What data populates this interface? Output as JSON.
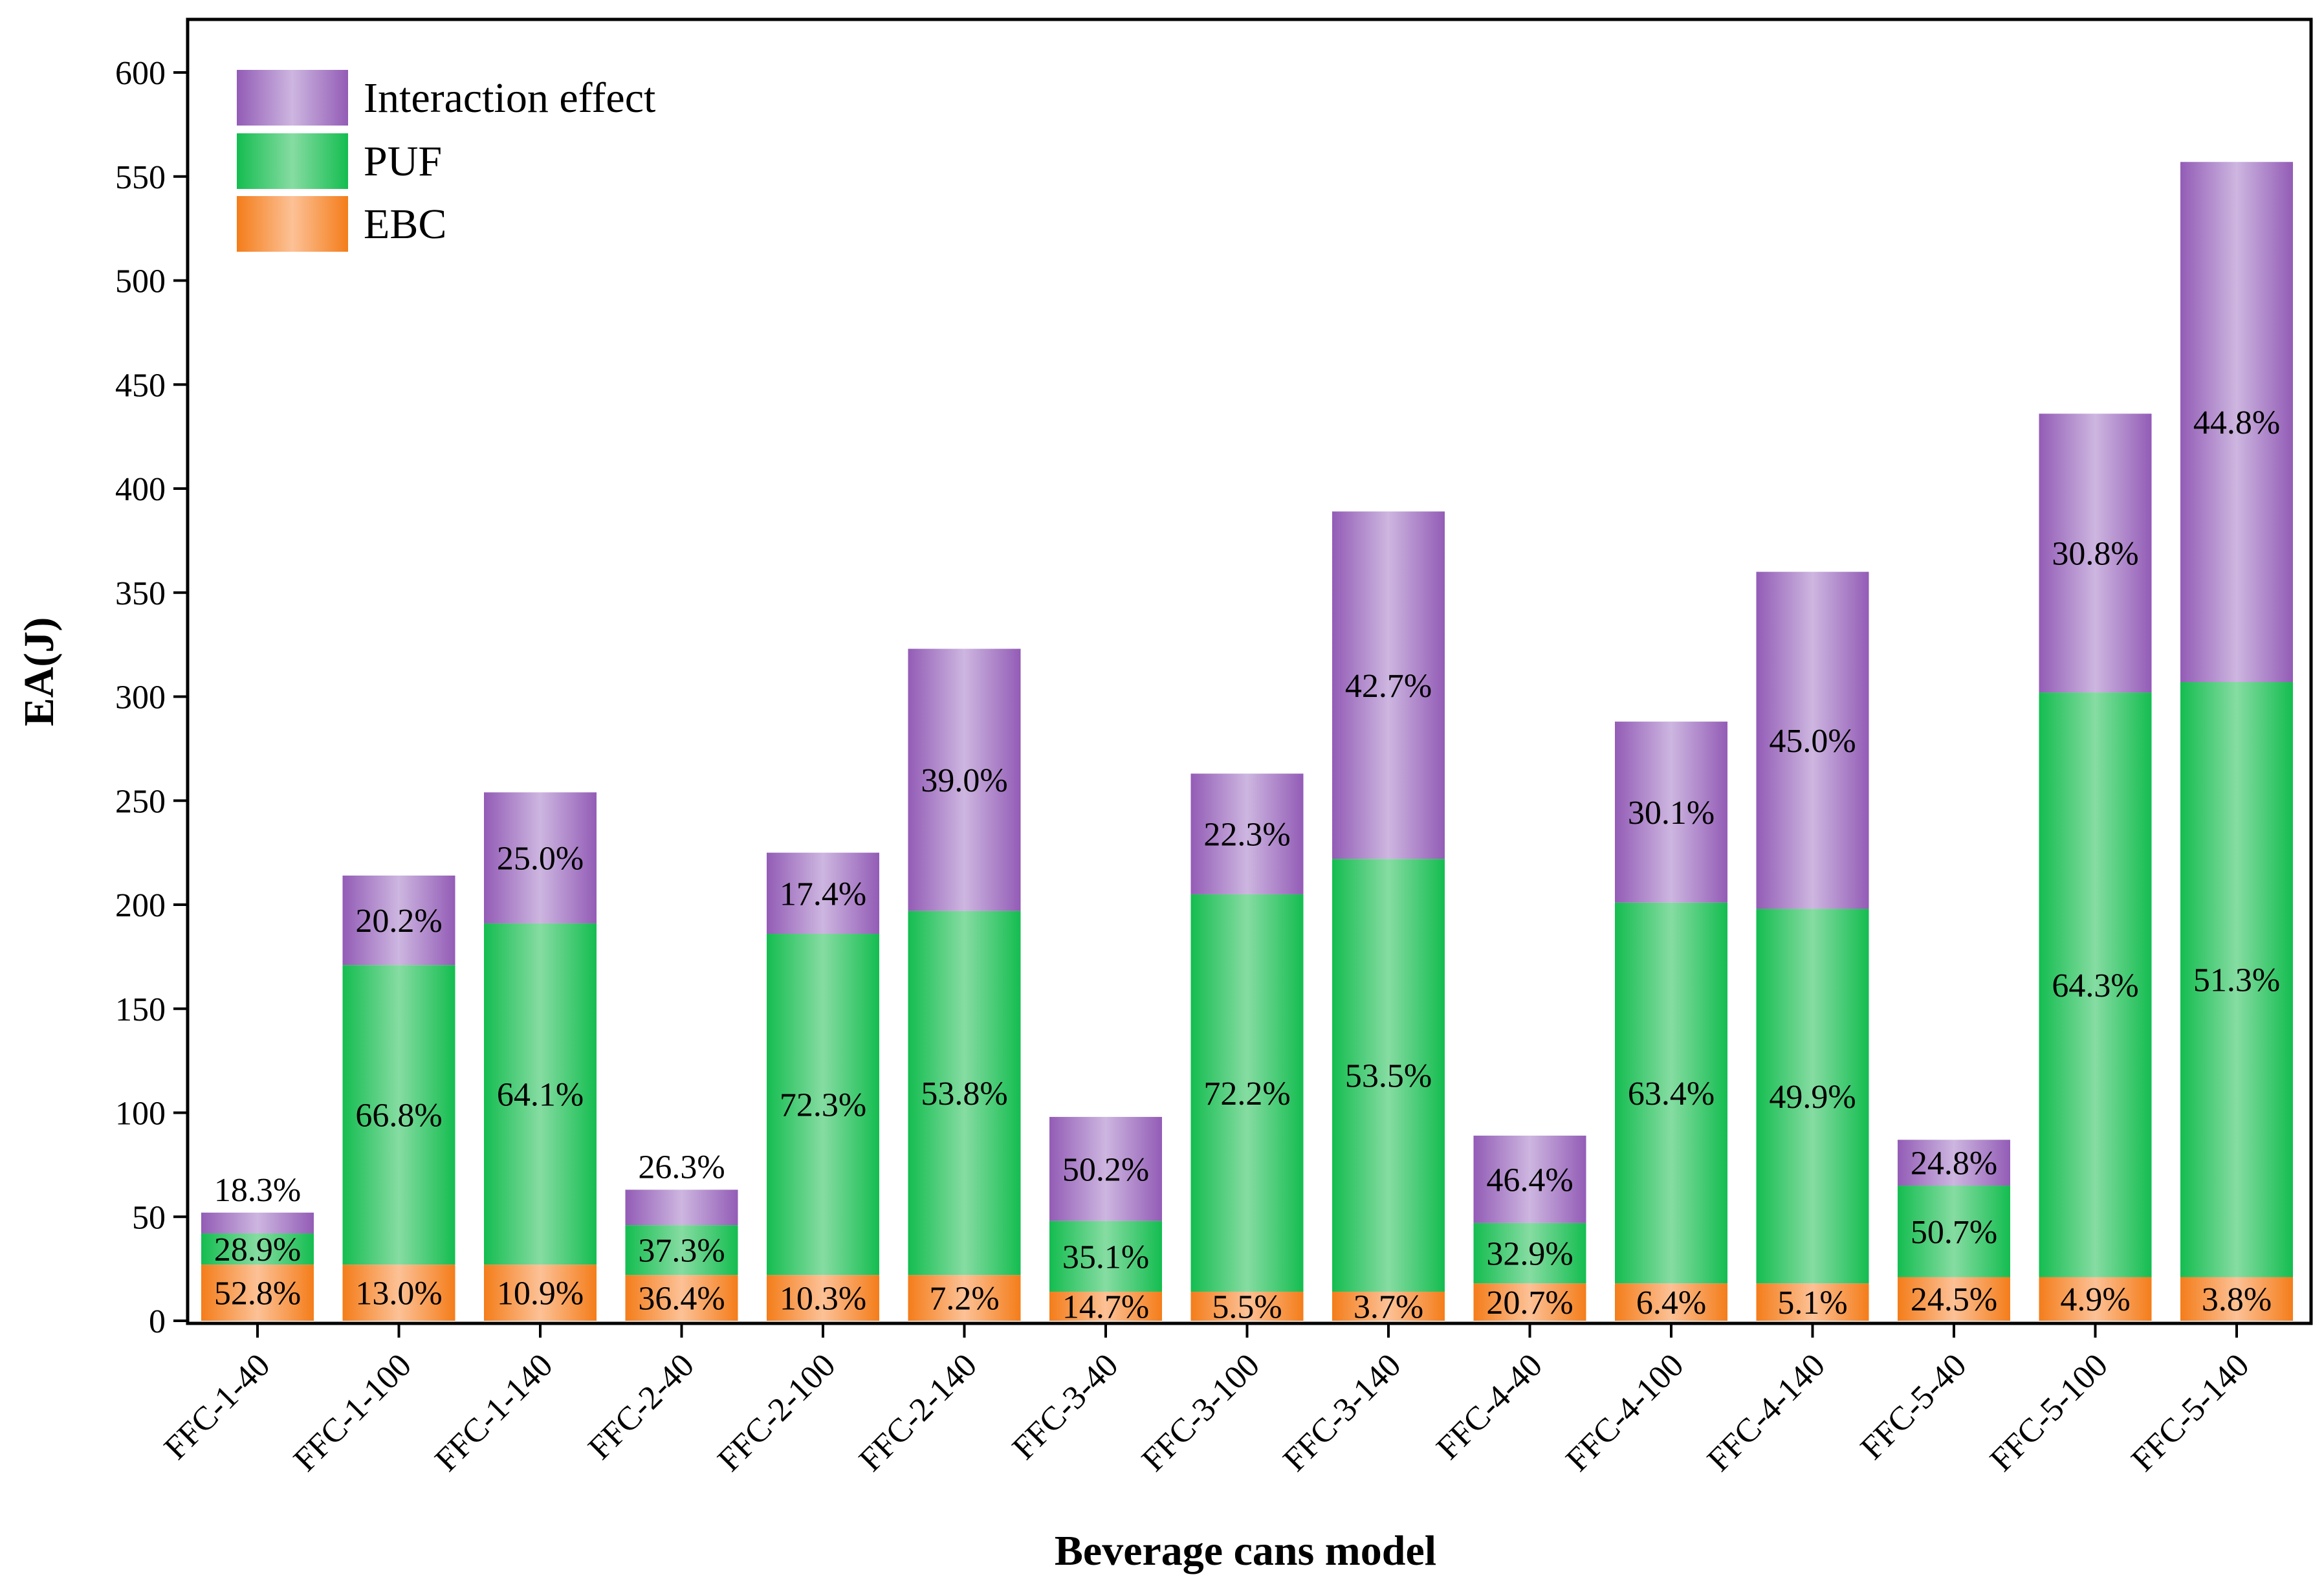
{
  "chart_data": {
    "type": "bar",
    "stacked": true,
    "title": "",
    "xlabel": "Beverage cans model",
    "ylabel": "EA(J)",
    "ylim": [
      0,
      600
    ],
    "yticks": [
      0,
      50,
      100,
      150,
      200,
      250,
      300,
      350,
      400,
      450,
      500,
      550,
      600
    ],
    "categories": [
      "FFC-1-40",
      "FFC-1-100",
      "FFC-1-140",
      "FFC-2-40",
      "FFC-2-100",
      "FFC-2-140",
      "FFC-3-40",
      "FFC-3-100",
      "FFC-3-140",
      "FFC-4-40",
      "FFC-4-100",
      "FFC-4-140",
      "FFC-5-40",
      "FFC-5-100",
      "FFC-5-140"
    ],
    "series": [
      {
        "name": "EBC",
        "color": "#f58a2a",
        "values": [
          27,
          27,
          27,
          22,
          22,
          22,
          14,
          14,
          14,
          18,
          18,
          18,
          21,
          21,
          21
        ],
        "labels": [
          "52.8%",
          "13.0%",
          "10.9%",
          "36.4%",
          "10.3%",
          "7.2%",
          "14.7%",
          "5.5%",
          "3.7%",
          "20.7%",
          "6.4%",
          "5.1%",
          "24.5%",
          "4.9%",
          "3.8%"
        ]
      },
      {
        "name": "PUF",
        "color": "#1ec25a",
        "values": [
          15,
          144,
          164,
          24,
          164,
          175,
          34,
          191,
          208,
          29,
          183,
          180,
          44,
          281,
          286
        ],
        "labels": [
          "28.9%",
          "66.8%",
          "64.1%",
          "37.3%",
          "72.3%",
          "53.8%",
          "35.1%",
          "72.2%",
          "53.5%",
          "32.9%",
          "63.4%",
          "49.9%",
          "50.7%",
          "64.3%",
          "51.3%"
        ]
      },
      {
        "name": "Interaction effect",
        "color": "#9966bb",
        "values": [
          10,
          43,
          63,
          17,
          39,
          126,
          50,
          58,
          167,
          42,
          87,
          162,
          22,
          134,
          250
        ],
        "labels": [
          "18.3%",
          "20.2%",
          "25.0%",
          "26.3%",
          "17.4%",
          "39.0%",
          "50.2%",
          "22.3%",
          "42.7%",
          "46.4%",
          "30.1%",
          "45.0%",
          "24.8%",
          "30.8%",
          "44.8%"
        ]
      }
    ],
    "legend_order": [
      "Interaction effect",
      "PUF",
      "EBC"
    ],
    "legend_position": "top-left"
  }
}
